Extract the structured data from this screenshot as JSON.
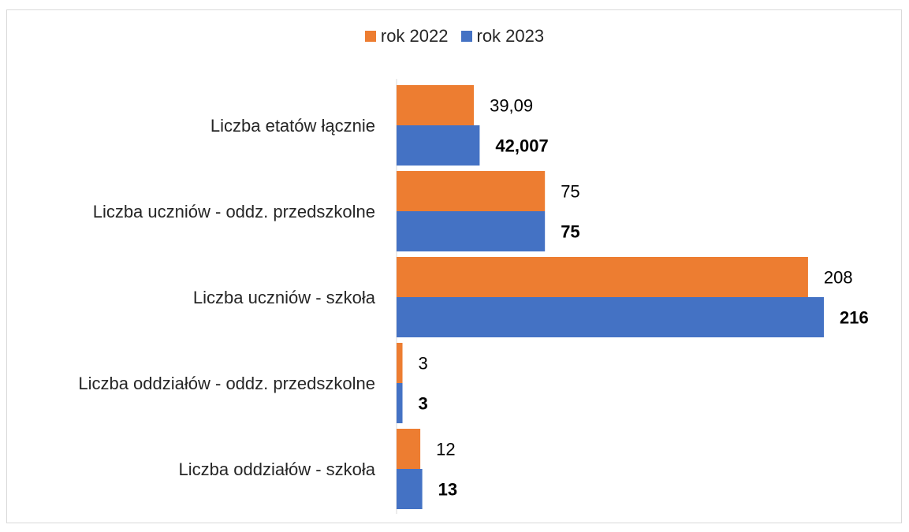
{
  "chart_data": {
    "type": "bar",
    "orientation": "horizontal",
    "title": "",
    "categories": [
      "Liczba etatów łącznie",
      "Liczba uczniów - oddz. przedszkolne",
      "Liczba uczniów - szkoła",
      "Liczba oddziałów - oddz. przedszkolne",
      "Liczba oddziałów - szkoła"
    ],
    "series": [
      {
        "name": "rok 2022",
        "color": "#ed7d31",
        "values": [
          39.09,
          75,
          208,
          3,
          12
        ],
        "labels": [
          "39,09",
          "75",
          "208",
          "3",
          "12"
        ],
        "label_bold": false
      },
      {
        "name": "rok 2023",
        "color": "#4472c4",
        "values": [
          42.007,
          75,
          216,
          3,
          13
        ],
        "labels": [
          "42,007",
          "75",
          "216",
          "3",
          "13"
        ],
        "label_bold": true
      }
    ],
    "xlim": [
      0,
      240
    ],
    "grid": false,
    "legend_position": "top"
  }
}
